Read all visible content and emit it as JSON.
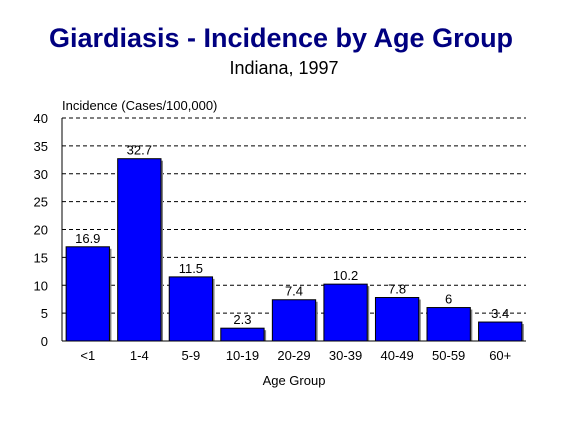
{
  "chart_data": {
    "type": "bar",
    "title": "Giardiasis - Incidence by Age Group",
    "subtitle": "Indiana, 1997",
    "ylabel": "Incidence (Cases/100,000)",
    "xlabel": "Age Group",
    "categories": [
      "<1",
      "1-4",
      "5-9",
      "10-19",
      "20-29",
      "30-39",
      "40-49",
      "50-59",
      "60+"
    ],
    "values": [
      16.9,
      32.7,
      11.5,
      2.3,
      7.4,
      10.2,
      7.8,
      6,
      3.4
    ],
    "value_labels": [
      "16.9",
      "32.7",
      "11.5",
      "2.3",
      "7.4",
      "10.2",
      "7.8",
      "6",
      "3.4"
    ],
    "ylim": [
      0,
      40
    ],
    "yticks": [
      0,
      5,
      10,
      15,
      20,
      25,
      30,
      35,
      40
    ],
    "grid": true,
    "legend": "none",
    "bar_color": "#0000ff"
  }
}
